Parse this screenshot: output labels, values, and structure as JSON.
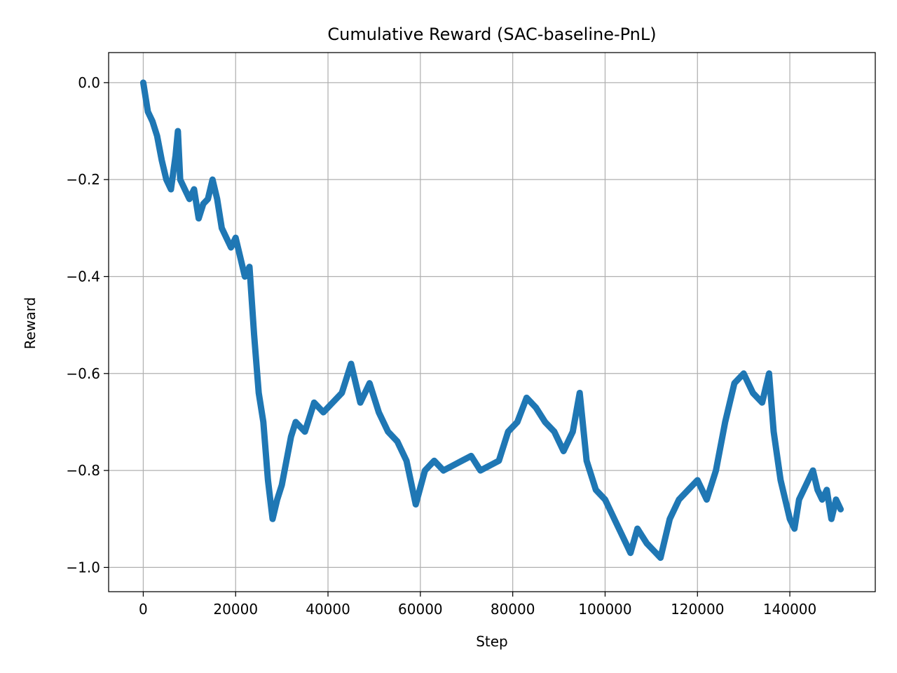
{
  "chart_data": {
    "type": "line",
    "title": "Cumulative Reward (SAC-baseline-PnL)",
    "xlabel": "Step",
    "ylabel": "Reward",
    "xlim": [
      -7500,
      158500
    ],
    "ylim": [
      -1.05,
      0.062
    ],
    "xticks": [
      0,
      20000,
      40000,
      60000,
      80000,
      100000,
      120000,
      140000
    ],
    "xtick_labels": [
      "0",
      "20000",
      "40000",
      "60000",
      "80000",
      "100000",
      "120000",
      "140000"
    ],
    "yticks": [
      0.0,
      -0.2,
      -0.4,
      -0.6,
      -0.8,
      -1.0
    ],
    "ytick_labels": [
      "0.0",
      "−0.2",
      "−0.4",
      "−0.6",
      "−0.8",
      "−1.0"
    ],
    "grid": true,
    "legend": "none",
    "colors": {
      "line": "#1f77b4",
      "grid": "#b0b0b0",
      "axes": "#000000"
    },
    "series": [
      {
        "x": [
          0,
          1000,
          2000,
          3000,
          4000,
          5000,
          6000,
          7000,
          7500,
          8000,
          9000,
          10000,
          11000,
          12000,
          13000,
          14000,
          15000,
          16000,
          17000,
          18000,
          19000,
          20000,
          21000,
          22000,
          23000,
          24000,
          25000,
          26000,
          27000,
          28000,
          29000,
          30000,
          31000,
          32000,
          33000,
          35000,
          37000,
          39000,
          41000,
          43000,
          45000,
          47000,
          49000,
          51000,
          53000,
          55000,
          57000,
          59000,
          61000,
          63000,
          65000,
          67000,
          69000,
          71000,
          73000,
          75000,
          77000,
          79000,
          81000,
          83000,
          85000,
          87000,
          89000,
          91000,
          93000,
          94500,
          96000,
          98000,
          100000,
          102000,
          104000,
          105500,
          107000,
          109000,
          111000,
          112000,
          114000,
          116000,
          118000,
          120000,
          122000,
          124000,
          126000,
          128000,
          130000,
          132000,
          134000,
          135500,
          136500,
          138000,
          139000,
          140000,
          141000,
          142000,
          143000,
          144000,
          145000,
          146000,
          147000,
          148000,
          149000,
          150000,
          151000
        ],
        "y": [
          0.0,
          -0.06,
          -0.08,
          -0.11,
          -0.16,
          -0.2,
          -0.22,
          -0.15,
          -0.1,
          -0.2,
          -0.22,
          -0.24,
          -0.22,
          -0.28,
          -0.25,
          -0.24,
          -0.2,
          -0.24,
          -0.3,
          -0.32,
          -0.34,
          -0.32,
          -0.36,
          -0.4,
          -0.38,
          -0.52,
          -0.64,
          -0.7,
          -0.82,
          -0.9,
          -0.86,
          -0.83,
          -0.78,
          -0.73,
          -0.7,
          -0.72,
          -0.66,
          -0.68,
          -0.66,
          -0.64,
          -0.58,
          -0.66,
          -0.62,
          -0.68,
          -0.72,
          -0.74,
          -0.78,
          -0.87,
          -0.8,
          -0.78,
          -0.8,
          -0.79,
          -0.78,
          -0.77,
          -0.8,
          -0.79,
          -0.78,
          -0.72,
          -0.7,
          -0.65,
          -0.67,
          -0.7,
          -0.72,
          -0.76,
          -0.72,
          -0.64,
          -0.78,
          -0.84,
          -0.86,
          -0.9,
          -0.94,
          -0.97,
          -0.92,
          -0.95,
          -0.97,
          -0.98,
          -0.9,
          -0.86,
          -0.84,
          -0.82,
          -0.86,
          -0.8,
          -0.7,
          -0.62,
          -0.6,
          -0.64,
          -0.66,
          -0.6,
          -0.72,
          -0.82,
          -0.86,
          -0.9,
          -0.92,
          -0.86,
          -0.84,
          -0.82,
          -0.8,
          -0.84,
          -0.86,
          -0.84,
          -0.9,
          -0.86,
          -0.88
        ]
      }
    ]
  }
}
